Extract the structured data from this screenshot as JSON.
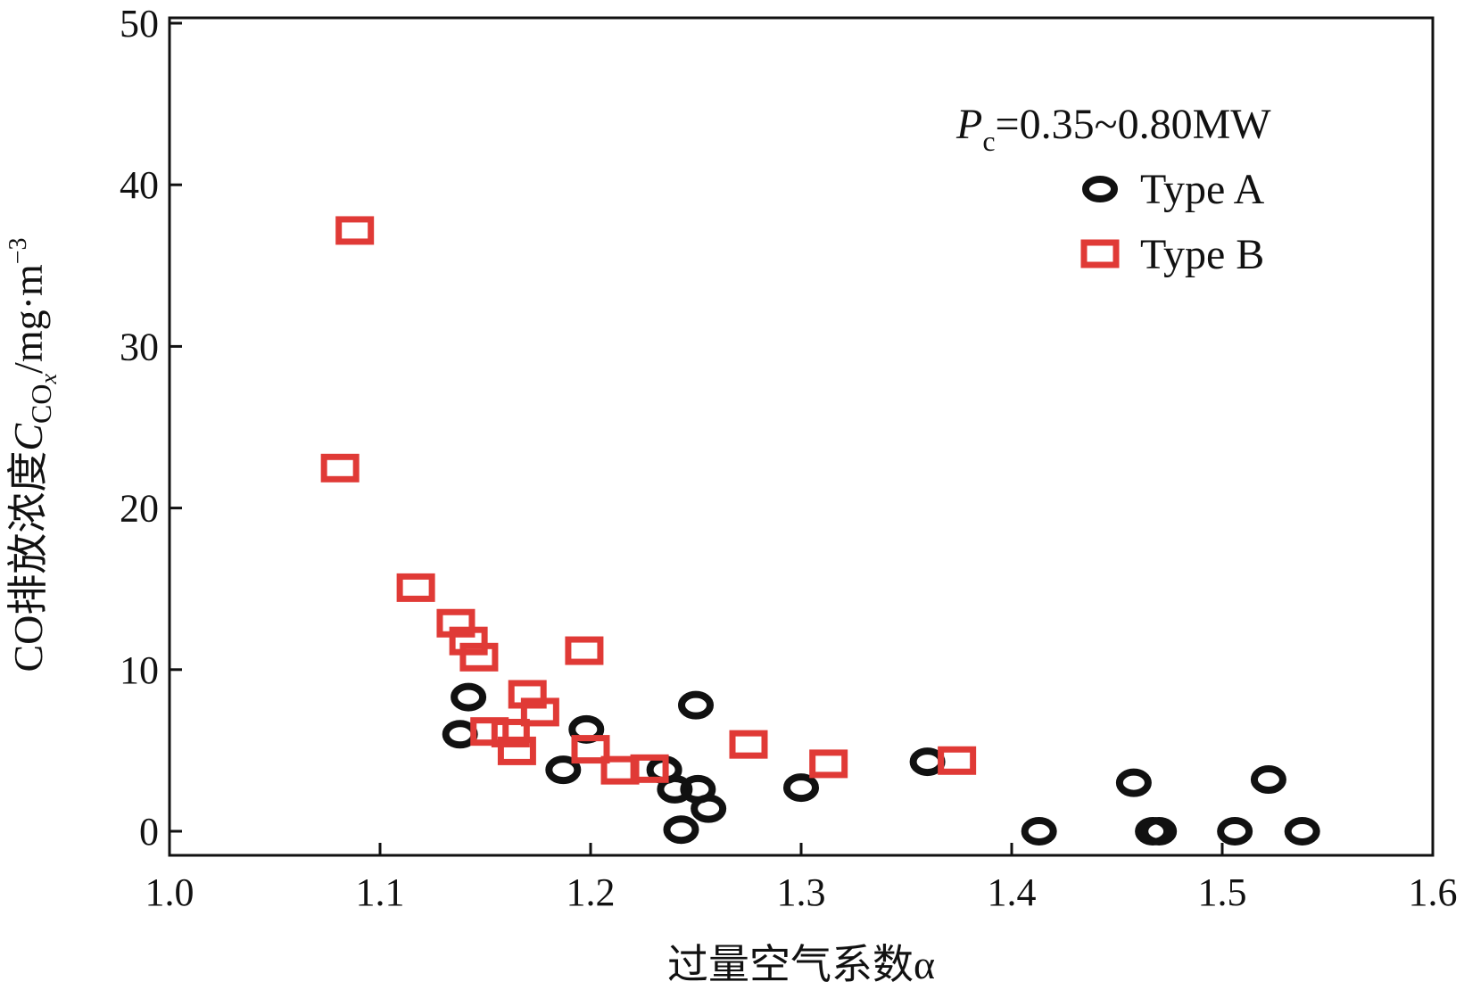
{
  "chart_data": {
    "type": "scatter",
    "xlabel": "过量空气系数α",
    "ylabel": "CO排放浓度C_COx/mg·m⁻³",
    "ylabel_parts": {
      "prefix": "CO排放浓度",
      "symbol": "C",
      "sub_main": "CO",
      "sub_x": "x",
      "unit": "/mg·m",
      "unit_exp": "−3"
    },
    "xlim": [
      1.0,
      1.6
    ],
    "ylim": [
      0,
      50
    ],
    "xticks": [
      1.0,
      1.1,
      1.2,
      1.3,
      1.4,
      1.5,
      1.6
    ],
    "xtick_labels": [
      "1.0",
      "1.1",
      "1.2",
      "1.3",
      "1.4",
      "1.5",
      "1.6"
    ],
    "yticks": [
      0,
      10,
      20,
      30,
      40,
      50
    ],
    "ytick_labels": [
      "0",
      "10",
      "20",
      "30",
      "40",
      "50"
    ],
    "grid": false,
    "legend_position": "top-right",
    "annotation": {
      "symbol": "P",
      "sub": "c",
      "text": "=0.35~0.80MW"
    },
    "series": [
      {
        "name": "Type A",
        "marker": "circle",
        "color": "#111111",
        "points": [
          [
            1.138,
            6.0
          ],
          [
            1.142,
            8.3
          ],
          [
            1.187,
            3.8
          ],
          [
            1.198,
            6.3
          ],
          [
            1.235,
            3.8
          ],
          [
            1.24,
            2.6
          ],
          [
            1.243,
            0.1
          ],
          [
            1.25,
            7.8
          ],
          [
            1.251,
            2.6
          ],
          [
            1.256,
            1.4
          ],
          [
            1.3,
            2.7
          ],
          [
            1.36,
            4.3
          ],
          [
            1.413,
            0.0
          ],
          [
            1.458,
            3.0
          ],
          [
            1.467,
            0.0
          ],
          [
            1.47,
            0.0
          ],
          [
            1.506,
            0.0
          ],
          [
            1.522,
            3.2
          ],
          [
            1.538,
            0.0
          ]
        ]
      },
      {
        "name": "Type B",
        "marker": "square",
        "color": "#e03a36",
        "points": [
          [
            1.081,
            22.5
          ],
          [
            1.088,
            37.2
          ],
          [
            1.117,
            15.1
          ],
          [
            1.136,
            12.9
          ],
          [
            1.142,
            11.8
          ],
          [
            1.147,
            10.8
          ],
          [
            1.152,
            6.2
          ],
          [
            1.162,
            6.1
          ],
          [
            1.165,
            5.0
          ],
          [
            1.17,
            8.5
          ],
          [
            1.176,
            7.4
          ],
          [
            1.197,
            11.2
          ],
          [
            1.2,
            5.1
          ],
          [
            1.214,
            3.8
          ],
          [
            1.228,
            3.9
          ],
          [
            1.275,
            5.4
          ],
          [
            1.313,
            4.2
          ],
          [
            1.374,
            4.4
          ]
        ]
      }
    ]
  }
}
